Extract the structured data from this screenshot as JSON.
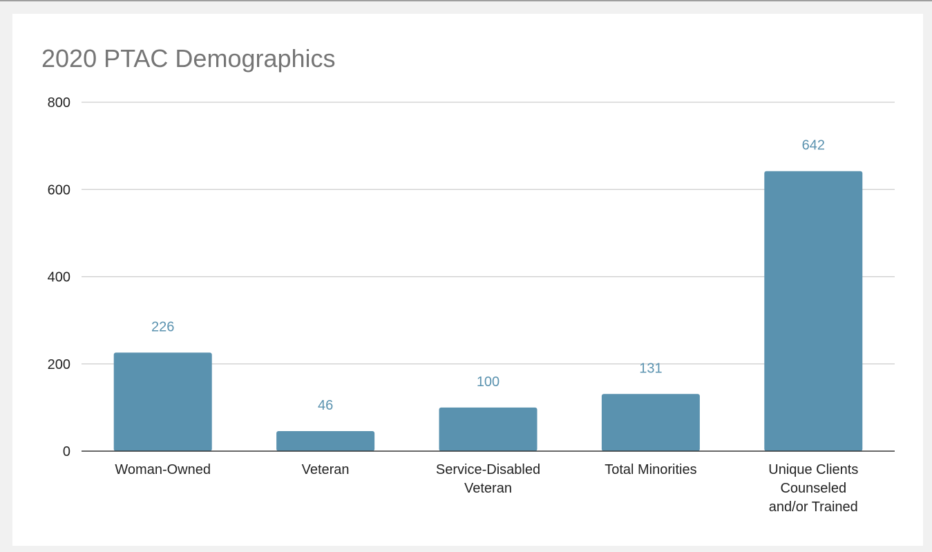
{
  "chart_data": {
    "type": "bar",
    "title": "2020 PTAC Demographics",
    "xlabel": "",
    "ylabel": "",
    "categories": [
      [
        "Woman-Owned"
      ],
      [
        "Veteran"
      ],
      [
        "Service-Disabled",
        "Veteran"
      ],
      [
        "Total Minorities"
      ],
      [
        "Unique Clients",
        "Counseled",
        "and/or Trained"
      ]
    ],
    "values": [
      226,
      46,
      100,
      131,
      642
    ],
    "ylim": [
      0,
      800
    ],
    "yticks": [
      0,
      200,
      400,
      600,
      800
    ],
    "grid": true,
    "data_labels": true,
    "legend": "none",
    "colors": {
      "bar": "#5a92af",
      "data_label": "#5a92af",
      "gridline": "#cccccc",
      "axis": "#333333",
      "tick_text": "#222222",
      "title": "#757575"
    }
  }
}
